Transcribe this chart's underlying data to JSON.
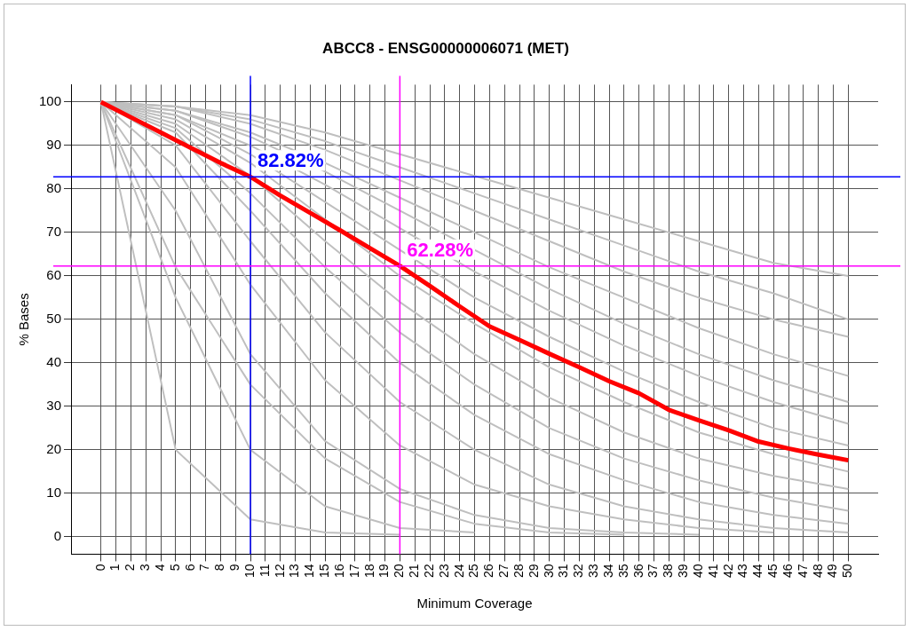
{
  "chart_data": {
    "type": "line",
    "title": "ABCC8 - ENSG00000006071 (MET)",
    "xlabel": "Minimum Coverage",
    "ylabel": "% Bases",
    "x": [
      0,
      5,
      10,
      15,
      20,
      25,
      30,
      35,
      40,
      45,
      50
    ],
    "series": [
      {
        "color": "#ff0000",
        "x": [
          0,
          2,
          4,
          6,
          8,
          10,
          12,
          14,
          16,
          18,
          20,
          22,
          24,
          26,
          28,
          30,
          32,
          34,
          36,
          38,
          40,
          42,
          44,
          46,
          48,
          50
        ],
        "values": [
          100,
          96.5,
          93,
          89.5,
          86,
          82.8,
          78.5,
          74.5,
          70.5,
          66.4,
          62.3,
          57.7,
          53,
          48.4,
          45.3,
          42.1,
          39,
          35.8,
          33,
          29.2,
          26.8,
          24.5,
          21.9,
          20.3,
          18.9,
          17.6
        ]
      },
      {
        "color": "#bfbfbf",
        "values": [
          100,
          99,
          97,
          93,
          88,
          83,
          78,
          73,
          68,
          63,
          60
        ]
      },
      {
        "color": "#bfbfbf",
        "values": [
          100,
          99,
          96,
          91,
          85,
          79,
          73,
          67,
          61,
          56,
          50
        ]
      },
      {
        "color": "#bfbfbf",
        "values": [
          100,
          99,
          95,
          89,
          82,
          75,
          68,
          61,
          55,
          50,
          46
        ]
      },
      {
        "color": "#bfbfbf",
        "values": [
          100,
          98,
          93,
          86,
          78,
          70,
          62,
          55,
          48,
          42,
          37
        ]
      },
      {
        "color": "#bfbfbf",
        "values": [
          100,
          98,
          92,
          84,
          75,
          66,
          57,
          49,
          42,
          36,
          31
        ]
      },
      {
        "color": "#bfbfbf",
        "values": [
          100,
          97,
          90,
          81,
          71,
          61,
          52,
          44,
          37,
          31,
          26
        ]
      },
      {
        "color": "#bfbfbf",
        "values": [
          100,
          97,
          88,
          77,
          66,
          55,
          46,
          38,
          31,
          25,
          21
        ]
      },
      {
        "color": "#bfbfbf",
        "values": [
          100,
          96,
          86,
          73,
          60,
          49,
          39,
          31,
          24,
          19,
          15
        ]
      },
      {
        "color": "#bfbfbf",
        "values": [
          100,
          95,
          83,
          68,
          54,
          42,
          32,
          24,
          18,
          14,
          11
        ]
      },
      {
        "color": "#bfbfbf",
        "values": [
          100,
          94,
          79,
          62,
          47,
          35,
          25,
          18,
          13,
          9,
          6
        ]
      },
      {
        "color": "#bfbfbf",
        "values": [
          100,
          93,
          75,
          56,
          40,
          28,
          19,
          13,
          8,
          5,
          3
        ]
      },
      {
        "color": "#bfbfbf",
        "values": [
          100,
          90,
          68,
          47,
          31,
          20,
          12,
          7,
          4,
          2,
          1
        ]
      },
      {
        "color": "#bfbfbf",
        "values": [
          100,
          85,
          58,
          36,
          21,
          12,
          7,
          4,
          2,
          1,
          null
        ]
      },
      {
        "color": "#bfbfbf",
        "values": [
          100,
          75,
          42,
          22,
          11,
          5,
          2,
          1,
          0.5,
          null,
          null
        ]
      },
      {
        "color": "#bfbfbf",
        "values": [
          100,
          62,
          35,
          18,
          8,
          3,
          1,
          0.5,
          null,
          null,
          null
        ]
      },
      {
        "color": "#bfbfbf",
        "values": [
          100,
          55,
          20,
          7,
          2,
          1,
          null,
          null,
          null,
          null,
          null
        ]
      },
      {
        "color": "#bfbfbf",
        "values": [
          100,
          20,
          4,
          1,
          0.5,
          null,
          null,
          null,
          null,
          null,
          null
        ]
      }
    ],
    "xlim": [
      -2,
      52
    ],
    "xticks": [
      0,
      1,
      2,
      3,
      4,
      5,
      6,
      7,
      8,
      9,
      10,
      11,
      12,
      13,
      14,
      15,
      16,
      17,
      18,
      19,
      20,
      21,
      22,
      23,
      24,
      25,
      26,
      27,
      28,
      29,
      30,
      31,
      32,
      33,
      34,
      35,
      36,
      37,
      38,
      39,
      40,
      41,
      42,
      43,
      44,
      45,
      46,
      47,
      48,
      49,
      50
    ],
    "ylim": [
      -4,
      104
    ],
    "yticks": [
      0,
      10,
      20,
      30,
      40,
      50,
      60,
      70,
      80,
      90,
      100
    ],
    "ref_lines": [
      {
        "axis": "x",
        "value": 10,
        "color": "#0000ff"
      },
      {
        "axis": "y",
        "value": 82.82,
        "color": "#0000ff"
      },
      {
        "axis": "x",
        "value": 20,
        "color": "#ff00ff"
      },
      {
        "axis": "y",
        "value": 62.28,
        "color": "#ff00ff"
      }
    ],
    "annotations": [
      {
        "text": "82.82%",
        "x": 10,
        "y": 82.82
      },
      {
        "text": "62.28%",
        "x": 20,
        "y": 62.28
      }
    ],
    "grid": true,
    "legend": false,
    "marker": "none",
    "line_style": "solid"
  }
}
